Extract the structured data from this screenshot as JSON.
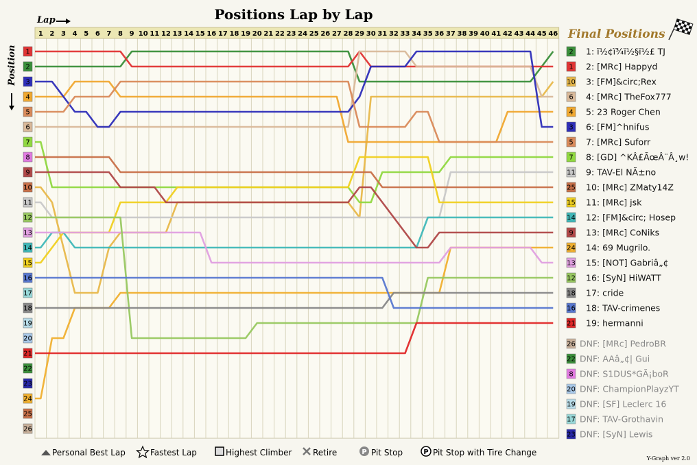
{
  "chart_data": {
    "type": "line",
    "title": "Positions Lap by Lap",
    "xlabel": "Lap",
    "ylabel": "Position",
    "laps": [
      1,
      2,
      3,
      4,
      5,
      6,
      7,
      8,
      9,
      10,
      11,
      12,
      13,
      14,
      15,
      16,
      17,
      18,
      19,
      20,
      21,
      22,
      23,
      24,
      25,
      26,
      27,
      28,
      29,
      30,
      31,
      32,
      33,
      34,
      35,
      36,
      37,
      38,
      39,
      40,
      41,
      42,
      43,
      44,
      45,
      46
    ],
    "positions": [
      1,
      2,
      3,
      4,
      5,
      6,
      7,
      8,
      9,
      10,
      11,
      12,
      13,
      14,
      15,
      16,
      17,
      18,
      19,
      20,
      21,
      22,
      23,
      24,
      25,
      26
    ],
    "final_positions_title": "Final Positions",
    "series": [
      {
        "name": "TJ",
        "label": "1: ï½¢ï¾ï½§ï½£ TJ",
        "color": "#3a8f3a",
        "change": "2",
        "finish": "1",
        "pos": [
          2,
          2,
          2,
          2,
          2,
          2,
          2,
          2,
          1,
          1,
          1,
          1,
          1,
          1,
          1,
          1,
          1,
          1,
          1,
          1,
          1,
          1,
          1,
          1,
          1,
          1,
          1,
          1,
          3,
          3,
          3,
          3,
          3,
          3,
          3,
          3,
          3,
          3,
          3,
          3,
          3,
          3,
          3,
          3,
          2,
          1
        ]
      },
      {
        "name": "Happyd",
        "label": "2: [MRc] Happyd",
        "color": "#e03434",
        "change": "1",
        "finish": "2",
        "pos": [
          1,
          1,
          1,
          1,
          1,
          1,
          1,
          1,
          2,
          2,
          2,
          2,
          2,
          2,
          2,
          2,
          2,
          2,
          2,
          2,
          2,
          2,
          2,
          2,
          2,
          2,
          2,
          2,
          1,
          2,
          2,
          2,
          2,
          2,
          2,
          2,
          2,
          2,
          2,
          2,
          2,
          2,
          2,
          2,
          2,
          2
        ]
      },
      {
        "name": "Rex",
        "label": "3: [FM]&circ;Rex",
        "color": "#e8b84a",
        "change": "10",
        "finish": "3",
        "pos": [
          10,
          11,
          14,
          17,
          17,
          17,
          14,
          13,
          13,
          13,
          13,
          13,
          11,
          11,
          11,
          11,
          11,
          11,
          11,
          11,
          11,
          11,
          11,
          11,
          11,
          11,
          11,
          11,
          12,
          4,
          4,
          4,
          4,
          4,
          4,
          4,
          4,
          4,
          4,
          4,
          4,
          4,
          4,
          4,
          4,
          3
        ]
      },
      {
        "name": "TheFox777",
        "label": "4: [MRc] TheFox777",
        "color": "#d9b99a",
        "change": "6",
        "finish": "4",
        "pos": [
          6,
          6,
          6,
          6,
          6,
          6,
          6,
          6,
          6,
          6,
          6,
          6,
          6,
          6,
          6,
          6,
          6,
          6,
          6,
          6,
          6,
          6,
          6,
          6,
          6,
          6,
          6,
          6,
          1,
          1,
          1,
          1,
          1,
          2,
          2,
          2,
          2,
          2,
          2,
          2,
          2,
          2,
          2,
          2,
          4,
          4
        ]
      },
      {
        "name": "Roger Chen",
        "label": "5: 23 Roger Chen",
        "color": "#f0a830",
        "change": "4",
        "finish": "5",
        "pos": [
          4,
          4,
          4,
          3,
          3,
          3,
          3,
          4,
          4,
          4,
          4,
          4,
          4,
          4,
          4,
          4,
          4,
          4,
          4,
          4,
          4,
          4,
          4,
          4,
          4,
          4,
          4,
          7,
          7,
          7,
          7,
          7,
          7,
          7,
          7,
          7,
          7,
          7,
          7,
          7,
          7,
          5,
          5,
          5,
          5,
          5
        ]
      },
      {
        "name": "^hnifus",
        "label": "6: [FM]^hnifus",
        "color": "#2e2eb8",
        "change": "3",
        "finish": "6",
        "pos": [
          3,
          3,
          4,
          5,
          5,
          6,
          6,
          5,
          5,
          5,
          5,
          5,
          5,
          5,
          5,
          5,
          5,
          5,
          5,
          5,
          5,
          5,
          5,
          5,
          5,
          5,
          5,
          5,
          4,
          2,
          2,
          2,
          2,
          1,
          1,
          1,
          1,
          1,
          1,
          1,
          1,
          1,
          1,
          1,
          6,
          6
        ]
      },
      {
        "name": "Suforr",
        "label": "7: [MRc] Suforr",
        "color": "#d98a5a",
        "change": "5",
        "finish": "7",
        "pos": [
          5,
          5,
          5,
          4,
          4,
          4,
          4,
          3,
          3,
          3,
          3,
          3,
          3,
          3,
          3,
          3,
          3,
          3,
          3,
          3,
          3,
          3,
          3,
          3,
          3,
          3,
          3,
          3,
          6,
          6,
          6,
          6,
          6,
          5,
          5,
          7,
          7,
          7,
          7,
          7,
          7,
          7,
          7,
          7,
          7,
          7
        ]
      },
      {
        "name": "GD",
        "label": "8: [GD] ^KÂ£ÃœÂ¨Â¸w!",
        "color": "#90d840",
        "change": "7",
        "finish": "8",
        "pos": [
          7,
          10,
          10,
          10,
          10,
          10,
          10,
          10,
          10,
          10,
          10,
          10,
          10,
          10,
          10,
          10,
          10,
          10,
          10,
          10,
          10,
          10,
          10,
          10,
          10,
          10,
          10,
          10,
          11,
          11,
          9,
          9,
          9,
          9,
          9,
          9,
          8,
          8,
          8,
          8,
          8,
          8,
          8,
          8,
          8,
          8
        ]
      },
      {
        "name": "El Nino",
        "label": "9: TAV-El NÃ±no",
        "color": "#c8c8c8",
        "change": "11",
        "finish": "9",
        "pos": [
          11,
          12,
          12,
          12,
          12,
          12,
          12,
          12,
          12,
          12,
          12,
          12,
          12,
          12,
          12,
          12,
          12,
          12,
          12,
          12,
          12,
          12,
          12,
          12,
          12,
          12,
          12,
          12,
          12,
          12,
          12,
          12,
          12,
          12,
          12,
          12,
          9,
          9,
          9,
          9,
          9,
          9,
          9,
          9,
          9,
          9
        ]
      },
      {
        "name": "ZMaty14Z",
        "label": "10: [MRc] ZMaty14Z",
        "color": "#c87048",
        "change": "25",
        "finish": "10",
        "pos": [
          8,
          8,
          8,
          8,
          8,
          8,
          8,
          9,
          9,
          9,
          9,
          9,
          9,
          9,
          9,
          9,
          9,
          9,
          9,
          9,
          9,
          9,
          9,
          9,
          9,
          9,
          9,
          9,
          9,
          9,
          10,
          10,
          10,
          10,
          10,
          10,
          10,
          10,
          10,
          10,
          10,
          10,
          10,
          10,
          10,
          10
        ]
      },
      {
        "name": "jsk",
        "label": "11: [MRc] jsk",
        "color": "#f0d020",
        "change": "15",
        "finish": "11",
        "pos": [
          15,
          14,
          13,
          13,
          13,
          13,
          13,
          11,
          11,
          11,
          11,
          11,
          10,
          10,
          10,
          10,
          10,
          10,
          10,
          10,
          10,
          10,
          10,
          10,
          10,
          10,
          10,
          10,
          8,
          8,
          8,
          8,
          8,
          8,
          8,
          11,
          11,
          11,
          11,
          11,
          11,
          11,
          11,
          11,
          11,
          11
        ]
      },
      {
        "name": "Hosep",
        "label": "12: [FM]&circ; Hosep",
        "color": "#40b8b8",
        "change": "14",
        "finish": "12",
        "pos": [
          14,
          13,
          13,
          14,
          14,
          14,
          14,
          14,
          14,
          14,
          14,
          14,
          14,
          14,
          14,
          14,
          14,
          14,
          14,
          14,
          14,
          14,
          14,
          14,
          14,
          14,
          14,
          14,
          14,
          14,
          14,
          14,
          14,
          14,
          12,
          12,
          12,
          12,
          12,
          12,
          12,
          12,
          12,
          12,
          12,
          12
        ]
      },
      {
        "name": "CoNiks",
        "label": "13: [MRc] CoNiks",
        "color": "#b04848",
        "change": "9",
        "finish": "13",
        "pos": [
          9,
          9,
          9,
          9,
          9,
          9,
          9,
          10,
          10,
          10,
          10,
          11,
          11,
          11,
          11,
          11,
          11,
          11,
          11,
          11,
          11,
          11,
          11,
          11,
          11,
          11,
          11,
          11,
          10,
          10,
          11,
          12,
          13,
          14,
          14,
          13,
          13,
          13,
          13,
          13,
          13,
          13,
          13,
          13,
          13,
          13
        ]
      },
      {
        "name": "Mugrilo",
        "label": "14: 69 Mugrilo.",
        "color": "#f0b030",
        "change": "24",
        "finish": "14",
        "pos": [
          24,
          20,
          20,
          18,
          18,
          18,
          18,
          17,
          17,
          17,
          17,
          17,
          17,
          17,
          17,
          17,
          17,
          17,
          17,
          17,
          17,
          17,
          17,
          17,
          17,
          17,
          17,
          17,
          17,
          17,
          17,
          17,
          17,
          17,
          17,
          17,
          14,
          14,
          14,
          14,
          14,
          14,
          14,
          14,
          14,
          14
        ]
      },
      {
        "name": "Gabria",
        "label": "15: [NOT] Gabriâ„¢",
        "color": "#e0a0e0",
        "change": "13",
        "finish": "15",
        "pos": [
          13,
          13,
          13,
          13,
          13,
          13,
          13,
          13,
          13,
          13,
          13,
          13,
          13,
          13,
          13,
          15,
          15,
          15,
          15,
          15,
          15,
          15,
          15,
          15,
          15,
          15,
          15,
          15,
          15,
          15,
          15,
          15,
          15,
          15,
          15,
          15,
          14,
          14,
          14,
          14,
          14,
          14,
          14,
          14,
          15,
          15
        ]
      },
      {
        "name": "HiWATT",
        "label": "16: [SyN] HiWATT",
        "color": "#98c860",
        "change": "12",
        "finish": "16",
        "pos": [
          12,
          12,
          12,
          12,
          12,
          12,
          12,
          12,
          20,
          20,
          20,
          20,
          20,
          20,
          20,
          20,
          20,
          20,
          20,
          19,
          19,
          19,
          19,
          19,
          19,
          19,
          19,
          19,
          19,
          19,
          19,
          19,
          19,
          19,
          16,
          16,
          16,
          16,
          16,
          16,
          16,
          16,
          16,
          16,
          16,
          16
        ]
      },
      {
        "name": "cride",
        "label": "17: cride",
        "color": "#888888",
        "change": "18",
        "finish": "17",
        "pos": [
          18,
          18,
          18,
          18,
          18,
          18,
          18,
          18,
          18,
          18,
          18,
          18,
          18,
          18,
          18,
          18,
          18,
          18,
          18,
          18,
          18,
          18,
          18,
          18,
          18,
          18,
          18,
          18,
          18,
          18,
          18,
          17,
          17,
          17,
          17,
          17,
          17,
          17,
          17,
          17,
          17,
          17,
          17,
          17,
          17,
          17
        ]
      },
      {
        "name": "crimenes",
        "label": "18: TAV-crimenes",
        "color": "#5878d0",
        "change": "16",
        "finish": "18",
        "pos": [
          16,
          16,
          16,
          16,
          16,
          16,
          16,
          16,
          16,
          16,
          16,
          16,
          16,
          16,
          16,
          16,
          16,
          16,
          16,
          16,
          16,
          16,
          16,
          16,
          16,
          16,
          16,
          16,
          16,
          16,
          16,
          18,
          18,
          18,
          18,
          18,
          18,
          18,
          18,
          18,
          18,
          18,
          18,
          18,
          18,
          18
        ]
      },
      {
        "name": "hermanni",
        "label": "19: hermanni",
        "color": "#e02828",
        "change": "21",
        "finish": "19",
        "pos": [
          21,
          21,
          21,
          21,
          21,
          21,
          21,
          21,
          21,
          21,
          21,
          21,
          21,
          21,
          21,
          21,
          21,
          21,
          21,
          21,
          21,
          21,
          21,
          21,
          21,
          21,
          21,
          21,
          21,
          21,
          21,
          21,
          21,
          19,
          19,
          19,
          19,
          19,
          19,
          19,
          19,
          19,
          19,
          19,
          19,
          19
        ]
      }
    ],
    "dnf": [
      {
        "label": "DNF: [MRc] PedroBR",
        "num": "26",
        "color": "#c8b09a"
      },
      {
        "label": "DNF: AAâ„¢| Gui",
        "num": "22",
        "color": "#3a8f3a"
      },
      {
        "label": "DNF: S1DUS*GÃ¡boR",
        "num": "8",
        "color": "#e07ae0"
      },
      {
        "label": "DNF: ChampionPlayzYT",
        "num": "20",
        "color": "#a8c8e8"
      },
      {
        "label": "DNF: [SF] Leclerc 16",
        "num": "19",
        "color": "#b8dce8"
      },
      {
        "label": "DNF: TAV-Grothavin",
        "num": "17",
        "color": "#98d8d8"
      },
      {
        "label": "DNF: [SyN] Lewis",
        "num": "23",
        "color": "#2828a8"
      }
    ],
    "start_colors": {
      "1": "#e03434",
      "2": "#3a8f3a",
      "3": "#2e2eb8",
      "4": "#f0a830",
      "5": "#d98a5a",
      "6": "#d9b99a",
      "7": "#90d840",
      "8": "#e07ae0",
      "9": "#b04848",
      "10": "#c87048",
      "11": "#c8c8c8",
      "12": "#98c860",
      "13": "#e0a0e0",
      "14": "#40b8b8",
      "15": "#f0d020",
      "16": "#5878d0",
      "17": "#98d8d8",
      "18": "#888888",
      "19": "#b8dce8",
      "20": "#a8c8e8",
      "21": "#e02828",
      "22": "#3a8f3a",
      "23": "#2828a8",
      "24": "#f0b030",
      "25": "#c87048",
      "26": "#c8b09a"
    },
    "legend": {
      "personal_best": "Personal Best Lap",
      "fastest": "Fastest Lap",
      "climber": "Highest Climber",
      "retire": "Retire",
      "pit": "Pit Stop",
      "pit_tire": "Pit Stop with Tire Change"
    },
    "version": "Y-Graph ver 2.0"
  }
}
